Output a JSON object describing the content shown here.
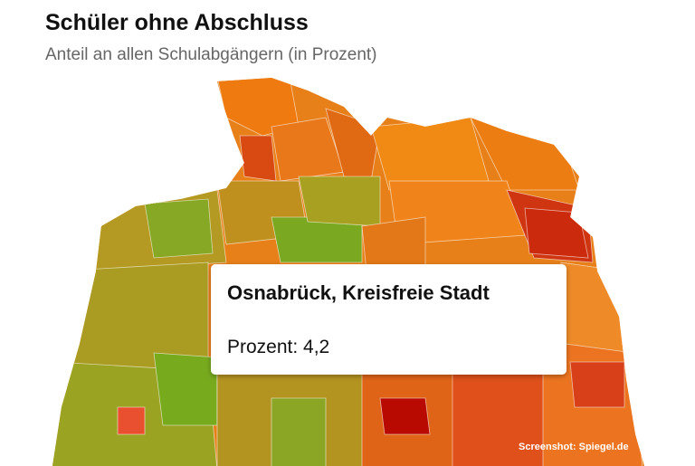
{
  "header": {
    "title": "Schüler ohne Abschluss",
    "subtitle": "Anteil an allen Schulabgängern (in Prozent)"
  },
  "tooltip": {
    "title": "Osnabrück, Kreisfreie Stadt",
    "text": "Prozent: 4,2"
  },
  "credit": "Screenshot: Spiegel.de"
}
